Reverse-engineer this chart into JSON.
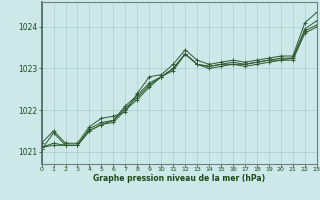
{
  "background_color": "#cce8e8",
  "grid_color": "#aacccc",
  "line_color": "#2d5a2d",
  "text_color": "#1a4a1a",
  "xlabel": "Graphe pression niveau de la mer (hPa)",
  "xlim": [
    0,
    23
  ],
  "ylim": [
    1020.7,
    1024.6
  ],
  "yticks": [
    1021,
    1022,
    1023,
    1024
  ],
  "xticks": [
    0,
    1,
    2,
    3,
    4,
    5,
    6,
    7,
    8,
    9,
    10,
    11,
    12,
    13,
    14,
    15,
    16,
    17,
    18,
    19,
    20,
    21,
    22,
    23
  ],
  "series": [
    [
      1021.2,
      1021.5,
      1021.2,
      1021.2,
      1021.6,
      1021.8,
      1021.85,
      1021.95,
      1022.4,
      1022.8,
      1022.85,
      1023.1,
      1023.45,
      1023.2,
      1023.1,
      1023.15,
      1023.2,
      1023.15,
      1023.2,
      1023.25,
      1023.3,
      1023.3,
      1024.1,
      1024.35
    ],
    [
      1021.1,
      1021.2,
      1021.15,
      1021.15,
      1021.55,
      1021.7,
      1021.75,
      1022.1,
      1022.35,
      1022.65,
      1022.8,
      1023.0,
      1023.35,
      1023.1,
      1023.05,
      1023.1,
      1023.15,
      1023.1,
      1023.15,
      1023.2,
      1023.25,
      1023.25,
      1023.95,
      1024.15
    ],
    [
      1021.1,
      1021.15,
      1021.15,
      1021.15,
      1021.5,
      1021.65,
      1021.75,
      1022.05,
      1022.3,
      1022.6,
      1022.8,
      1023.0,
      1023.35,
      1023.1,
      1023.05,
      1023.1,
      1023.1,
      1023.1,
      1023.15,
      1023.2,
      1023.2,
      1023.25,
      1023.9,
      1024.05
    ],
    [
      1021.05,
      1021.45,
      1021.15,
      1021.15,
      1021.5,
      1021.65,
      1021.7,
      1022.0,
      1022.25,
      1022.55,
      1022.8,
      1022.95,
      1023.35,
      1023.1,
      1023.0,
      1023.05,
      1023.1,
      1023.05,
      1023.1,
      1023.15,
      1023.2,
      1023.2,
      1023.85,
      1024.0
    ]
  ]
}
